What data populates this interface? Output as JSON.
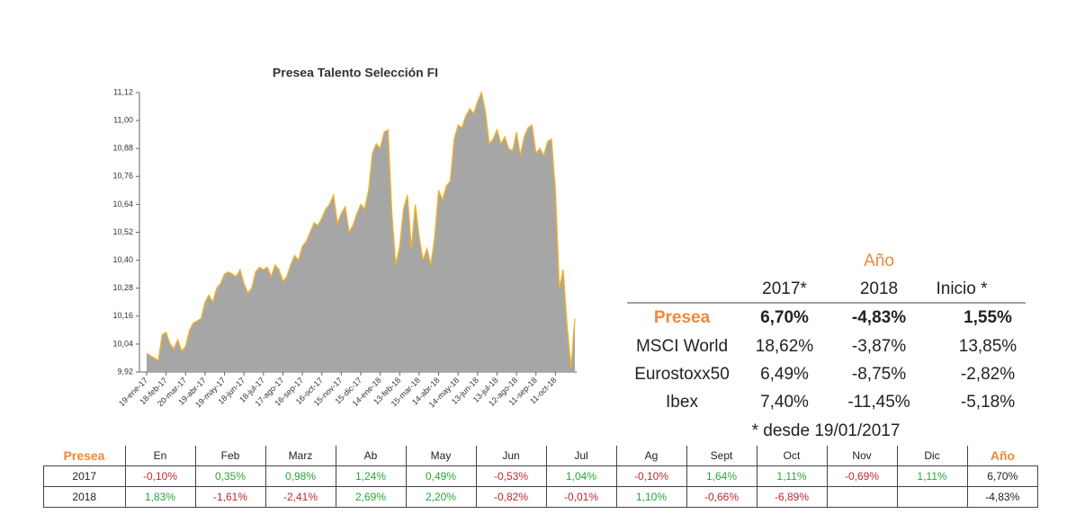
{
  "chart_data": {
    "type": "area",
    "title": "Presea Talento Selección FI",
    "categories": [
      "19-ene-17",
      null,
      null,
      null,
      null,
      "18-feb-17",
      null,
      null,
      null,
      null,
      "20-mar-17",
      null,
      null,
      null,
      null,
      "19-abr-17",
      null,
      null,
      null,
      null,
      "19-may-17",
      null,
      null,
      null,
      null,
      "18-jun-17",
      null,
      null,
      null,
      null,
      "18-jul-17",
      null,
      null,
      null,
      null,
      "17-ago-17",
      null,
      null,
      null,
      null,
      "16-sep-17",
      null,
      null,
      null,
      null,
      "16-oct-17",
      null,
      null,
      null,
      null,
      "15-nov-17",
      null,
      null,
      null,
      null,
      "15-dic-17",
      null,
      null,
      null,
      null,
      "14-ene-18",
      null,
      null,
      null,
      null,
      "13-feb-18",
      null,
      null,
      null,
      null,
      "15-mar-18",
      null,
      null,
      null,
      null,
      "14-abr-18",
      null,
      null,
      null,
      null,
      "14-may-18",
      null,
      null,
      null,
      null,
      "13-jun-18",
      null,
      null,
      null,
      null,
      "13-jul-18",
      null,
      null,
      null,
      null,
      "12-ago-18",
      null,
      null,
      null,
      null,
      "11-sep-18",
      null,
      null,
      null,
      null,
      "11-oct-18",
      null,
      null,
      null,
      null,
      null
    ],
    "values": [
      10.0,
      9.99,
      9.98,
      9.97,
      10.08,
      10.09,
      10.04,
      10.02,
      10.06,
      10.01,
      10.03,
      10.1,
      10.13,
      10.14,
      10.15,
      10.22,
      10.25,
      10.22,
      10.28,
      10.3,
      10.34,
      10.35,
      10.34,
      10.33,
      10.36,
      10.3,
      10.26,
      10.28,
      10.35,
      10.37,
      10.36,
      10.37,
      10.33,
      10.38,
      10.36,
      10.31,
      10.33,
      10.38,
      10.42,
      10.4,
      10.46,
      10.48,
      10.52,
      10.56,
      10.55,
      10.58,
      10.62,
      10.64,
      10.68,
      10.56,
      10.6,
      10.63,
      10.52,
      10.55,
      10.6,
      10.64,
      10.62,
      10.7,
      10.86,
      10.9,
      10.88,
      10.95,
      10.96,
      10.6,
      10.38,
      10.46,
      10.62,
      10.68,
      10.45,
      10.64,
      10.5,
      10.4,
      10.45,
      10.38,
      10.5,
      10.7,
      10.66,
      10.72,
      10.74,
      10.92,
      10.98,
      10.97,
      11.02,
      11.05,
      11.03,
      11.08,
      11.12,
      11.04,
      10.9,
      10.92,
      10.96,
      10.9,
      10.93,
      10.88,
      10.87,
      10.95,
      10.85,
      10.93,
      10.97,
      10.98,
      10.86,
      10.88,
      10.85,
      10.91,
      10.92,
      10.7,
      10.28,
      10.36,
      10.12,
      9.94,
      10.15
    ],
    "line_color": "#f5b324",
    "fill_color": "#a6a6a6",
    "ylim": [
      9.92,
      11.12
    ],
    "yticks": [
      {
        "value": 9.92,
        "label": "9,92"
      },
      {
        "value": 10.04,
        "label": "10,04"
      },
      {
        "value": 10.16,
        "label": "10,16"
      },
      {
        "value": 10.28,
        "label": "10,28"
      },
      {
        "value": 10.4,
        "label": "10,40"
      },
      {
        "value": 10.52,
        "label": "10,52"
      },
      {
        "value": 10.64,
        "label": "10,64"
      },
      {
        "value": 10.76,
        "label": "10,76"
      },
      {
        "value": 10.88,
        "label": "10,88"
      },
      {
        "value": 11.0,
        "label": "11,00"
      },
      {
        "value": 11.12,
        "label": "11,12"
      }
    ]
  },
  "summary_table": {
    "group_header": "Año",
    "columns": [
      "2017*",
      "2018",
      "Inicio *"
    ],
    "rows": [
      {
        "label": "Presea",
        "values": [
          "6,70%",
          "-4,83%",
          "1,55%"
        ]
      },
      {
        "label": "MSCI World",
        "values": [
          "18,62%",
          "-3,87%",
          "13,85%"
        ]
      },
      {
        "label": "Eurostoxx50",
        "values": [
          "6,49%",
          "-8,75%",
          "-2,82%"
        ]
      },
      {
        "label": "Ibex",
        "values": [
          "7,40%",
          "-11,45%",
          "-5,18%"
        ]
      }
    ],
    "note": "* desde 19/01/2017"
  },
  "monthly_table": {
    "header": [
      "Presea",
      "En",
      "Feb",
      "Marz",
      "Ab",
      "May",
      "Jun",
      "Jul",
      "Ag",
      "Sept",
      "Oct",
      "Nov",
      "Dic",
      "Año"
    ],
    "rows": [
      [
        "2017",
        "-0,10%",
        "0,35%",
        "0,98%",
        "1,24%",
        "0,49%",
        "-0,53%",
        "1,04%",
        "-0,10%",
        "1,64%",
        "1,11%",
        "-0,69%",
        "1,11%",
        "6,70%"
      ],
      [
        "2018",
        "1,83%",
        "-1,61%",
        "-2,41%",
        "2,69%",
        "2,20%",
        "-0,82%",
        "-0,01%",
        "1,10%",
        "-0,66%",
        "-6,89%",
        null,
        null,
        "-4,83%"
      ]
    ]
  }
}
